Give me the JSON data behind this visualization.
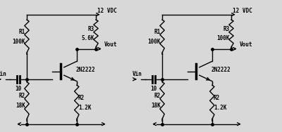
{
  "bg_color": "#d8d8d8",
  "line_color": "#000000",
  "text_color": "#000000",
  "lw": 1.0,
  "fs": 5.5,
  "circuits": [
    {
      "ox": 0.04,
      "r3_label": "R3",
      "r3_val": "5.6K",
      "r1_label": "R1",
      "r1_val": "100K",
      "r2a_label": "R2",
      "r2a_val": "18K",
      "r2b_label": "R2",
      "r2b_val": "1.2K",
      "vdc_label": "12 VDC",
      "vin_label": "Vin",
      "vout_label": "Vout",
      "cap_label": "10",
      "transistor_label": "2N2222"
    },
    {
      "ox": 0.52,
      "r3_label": "R3",
      "r3_val": "100K",
      "r1_label": "R1",
      "r1_val": "100K",
      "r2a_label": "R2",
      "r2a_val": "18K",
      "r2b_label": "R2",
      "r2b_val": "1.2K",
      "vdc_label": "12 VDC",
      "vin_label": "Vin",
      "vout_label": "Vout",
      "cap_label": "10",
      "transistor_label": "2N2222"
    }
  ]
}
